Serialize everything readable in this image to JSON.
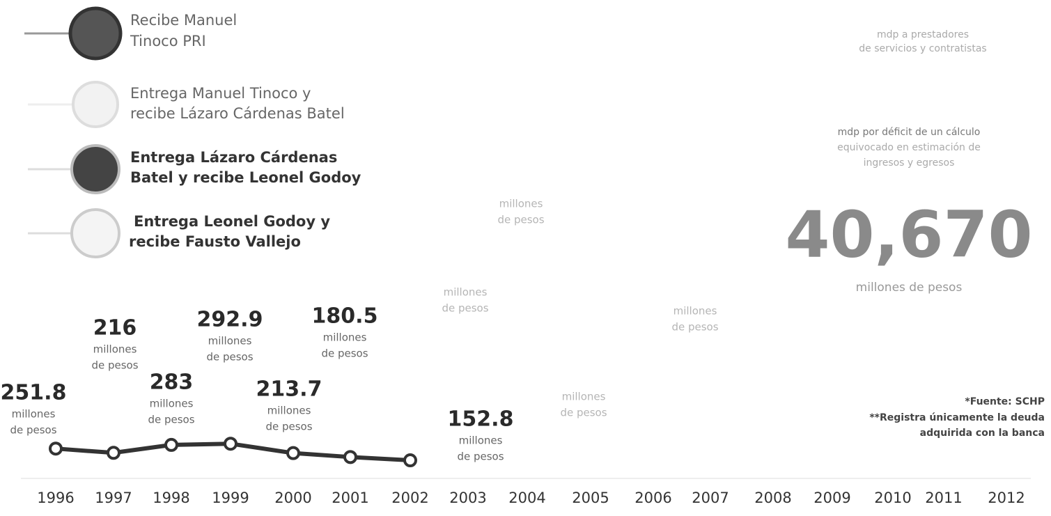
{
  "chart_data": {
    "type": "line",
    "categories": [
      "1996",
      "1997",
      "1998",
      "1999",
      "2000",
      "2001",
      "2002",
      "2003",
      "2004",
      "2005",
      "2006",
      "2007",
      "2008",
      "2009",
      "2010",
      "2011",
      "2012"
    ],
    "series": [
      {
        "color": "#333333",
        "values": [
          251.8,
          216,
          283,
          292.9,
          213.7,
          180.5,
          152.8,
          null,
          null,
          null,
          null,
          null,
          null,
          null,
          null,
          null,
          null
        ]
      }
    ],
    "ylim": [
      0,
      4000
    ],
    "unit_lines": [
      "millones",
      "de pesos"
    ],
    "legend_entries": [
      [
        "Recibe Manuel",
        "Tinoco PRI"
      ],
      [
        "Entrega Manuel Tinoco y",
        "recibe Lázaro Cárdenas Batel"
      ],
      [
        "Entrega Lázaro Cárdenas",
        "Batel y recibe Leonel Godoy"
      ],
      [
        "Entrega Leonel Godoy y",
        "recibe Fausto Vallejo"
      ]
    ],
    "annotations": {
      "contractors": [
        "mdp a prestadores",
        "de servicios y contratistas"
      ],
      "deficit": [
        "mdp por déficit de un cálculo",
        "equivocado en estimación de",
        "ingresos y egresos"
      ],
      "big_figure": "40,670",
      "big_figure_unit": "millones de pesos",
      "source": "*Fuente: SCHP",
      "note": [
        "**Registra únicamente la deuda",
        "adquirida con la banca"
      ]
    }
  }
}
